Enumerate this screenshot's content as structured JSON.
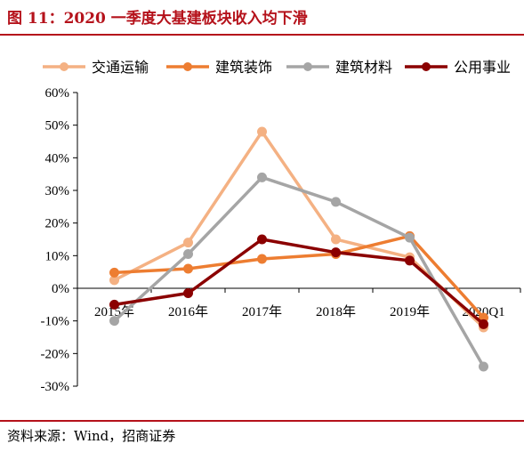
{
  "header": {
    "title": "图 11：2020 一季度大基建板块收入均下滑"
  },
  "footer": {
    "source": "资料来源：Wind，招商证券"
  },
  "colors": {
    "交通运输": "#f4b183",
    "建筑装饰": "#ed7d31",
    "建筑材料": "#a5a5a5",
    "公用事业": "#8b0000"
  },
  "chart_data": {
    "type": "line",
    "categories": [
      "2015年",
      "2016年",
      "2017年",
      "2018年",
      "2019年",
      "2020Q1"
    ],
    "y_ticks": [
      "60%",
      "50%",
      "40%",
      "30%",
      "20%",
      "10%",
      "0%",
      "-10%",
      "-20%",
      "-30%"
    ],
    "ylim": [
      -30,
      60
    ],
    "unit": "%",
    "legend_position": "top",
    "grid": false,
    "series": [
      {
        "name": "交通运输",
        "color": "#f4b183",
        "values": [
          2.5,
          14,
          48,
          15,
          9.5,
          -12
        ]
      },
      {
        "name": "建筑装饰",
        "color": "#ed7d31",
        "values": [
          4.8,
          6,
          9,
          10.5,
          16,
          -9
        ]
      },
      {
        "name": "建筑材料",
        "color": "#a5a5a5",
        "values": [
          -10,
          10.5,
          34,
          26.5,
          15.5,
          -24
        ]
      },
      {
        "name": "公用事业",
        "color": "#8b0000",
        "values": [
          -5,
          -1.5,
          15,
          11,
          8.5,
          -11
        ]
      }
    ]
  }
}
